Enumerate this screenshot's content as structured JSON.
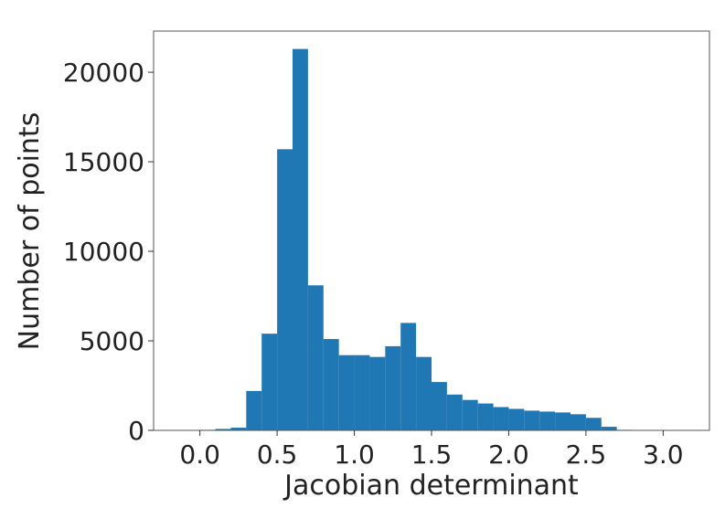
{
  "chart_data": {
    "type": "bar",
    "xlabel": "Jacobian determinant",
    "ylabel": "Number of points",
    "xlim": [
      -0.3,
      3.3
    ],
    "ylim": [
      0,
      22300
    ],
    "xticks": [
      0.0,
      0.5,
      1.0,
      1.5,
      2.0,
      2.5,
      3.0
    ],
    "xtick_labels": [
      "0.0",
      "0.5",
      "1.0",
      "1.5",
      "2.0",
      "2.5",
      "3.0"
    ],
    "yticks": [
      0,
      5000,
      10000,
      15000,
      20000
    ],
    "ytick_labels": [
      "0",
      "5000",
      "10000",
      "15000",
      "20000"
    ],
    "bin_width": 0.1,
    "bins": [
      {
        "x0": 0.0,
        "x1": 0.1,
        "value": 30
      },
      {
        "x0": 0.1,
        "x1": 0.2,
        "value": 80
      },
      {
        "x0": 0.2,
        "x1": 0.3,
        "value": 150
      },
      {
        "x0": 0.3,
        "x1": 0.4,
        "value": 2200
      },
      {
        "x0": 0.4,
        "x1": 0.5,
        "value": 5400
      },
      {
        "x0": 0.5,
        "x1": 0.6,
        "value": 15700
      },
      {
        "x0": 0.6,
        "x1": 0.7,
        "value": 21300
      },
      {
        "x0": 0.7,
        "x1": 0.8,
        "value": 8100
      },
      {
        "x0": 0.8,
        "x1": 0.9,
        "value": 5100
      },
      {
        "x0": 0.9,
        "x1": 1.0,
        "value": 4200
      },
      {
        "x0": 1.0,
        "x1": 1.1,
        "value": 4200
      },
      {
        "x0": 1.1,
        "x1": 1.2,
        "value": 4100
      },
      {
        "x0": 1.2,
        "x1": 1.3,
        "value": 4700
      },
      {
        "x0": 1.3,
        "x1": 1.4,
        "value": 6000
      },
      {
        "x0": 1.4,
        "x1": 1.5,
        "value": 4100
      },
      {
        "x0": 1.5,
        "x1": 1.6,
        "value": 2700
      },
      {
        "x0": 1.6,
        "x1": 1.7,
        "value": 2000
      },
      {
        "x0": 1.7,
        "x1": 1.8,
        "value": 1700
      },
      {
        "x0": 1.8,
        "x1": 1.9,
        "value": 1500
      },
      {
        "x0": 1.9,
        "x1": 2.0,
        "value": 1300
      },
      {
        "x0": 2.0,
        "x1": 2.1,
        "value": 1200
      },
      {
        "x0": 2.1,
        "x1": 2.2,
        "value": 1100
      },
      {
        "x0": 2.2,
        "x1": 2.3,
        "value": 1050
      },
      {
        "x0": 2.3,
        "x1": 2.4,
        "value": 1000
      },
      {
        "x0": 2.4,
        "x1": 2.5,
        "value": 900
      },
      {
        "x0": 2.5,
        "x1": 2.6,
        "value": 700
      },
      {
        "x0": 2.6,
        "x1": 2.7,
        "value": 200
      },
      {
        "x0": 2.7,
        "x1": 2.8,
        "value": 30
      }
    ],
    "bar_color": "#1f77b4",
    "grid": false,
    "legend": "none"
  }
}
